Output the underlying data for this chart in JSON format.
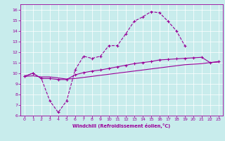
{
  "title": "",
  "xlabel": "Windchill (Refroidissement éolien,°C)",
  "bg_color": "#c8ecec",
  "line_color": "#990099",
  "grid_color": "#ffffff",
  "xlim": [
    -0.5,
    23.5
  ],
  "ylim": [
    6,
    16.5
  ],
  "xticks": [
    0,
    1,
    2,
    3,
    4,
    5,
    6,
    7,
    8,
    9,
    10,
    11,
    12,
    13,
    14,
    15,
    16,
    17,
    18,
    19,
    20,
    21,
    22,
    23
  ],
  "yticks": [
    6,
    7,
    8,
    9,
    10,
    11,
    12,
    13,
    14,
    15,
    16
  ],
  "line1_x": [
    0,
    1,
    2,
    3,
    4,
    5,
    6,
    7,
    8,
    9,
    10,
    11,
    12,
    13,
    14,
    15,
    16,
    17,
    18,
    19
  ],
  "line1_y": [
    9.7,
    10.0,
    9.5,
    7.4,
    6.3,
    7.4,
    10.3,
    11.6,
    11.4,
    11.6,
    12.6,
    12.6,
    13.7,
    14.9,
    15.3,
    15.8,
    15.7,
    14.9,
    14.0,
    12.6
  ],
  "line2_x": [
    0,
    1,
    2,
    3,
    4,
    5,
    6,
    7,
    8,
    9,
    10,
    11,
    12,
    13,
    14,
    15,
    16,
    17,
    18,
    19,
    20,
    21,
    22,
    23
  ],
  "line2_y": [
    9.7,
    10.0,
    9.5,
    9.5,
    9.4,
    9.4,
    9.85,
    10.05,
    10.2,
    10.3,
    10.45,
    10.6,
    10.75,
    10.9,
    11.0,
    11.1,
    11.25,
    11.3,
    11.35,
    11.4,
    11.45,
    11.5,
    11.0,
    11.1
  ],
  "line3_x": [
    0,
    1,
    2,
    3,
    4,
    5,
    6,
    7,
    8,
    9,
    10,
    11,
    12,
    13,
    14,
    15,
    16,
    17,
    18,
    19,
    20,
    21,
    22,
    23
  ],
  "line3_y": [
    9.7,
    9.75,
    9.65,
    9.65,
    9.55,
    9.45,
    9.5,
    9.6,
    9.7,
    9.8,
    9.9,
    10.0,
    10.1,
    10.2,
    10.3,
    10.4,
    10.5,
    10.6,
    10.7,
    10.8,
    10.85,
    10.9,
    11.0,
    11.05
  ]
}
